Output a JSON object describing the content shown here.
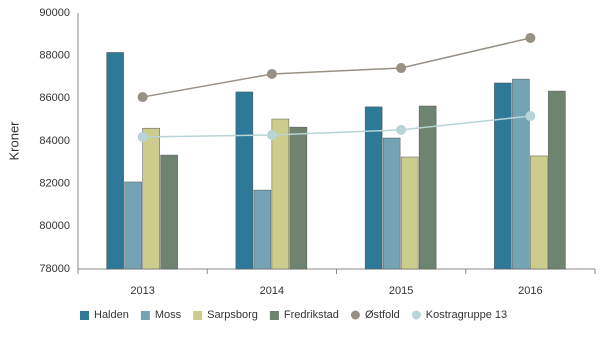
{
  "chart_data": {
    "type": "bar",
    "y_label": "Kroner",
    "categories": [
      "2013",
      "2014",
      "2015",
      "2016"
    ],
    "series": [
      {
        "name": "Halden",
        "type": "bar",
        "color": "#2e7898",
        "values": [
          88150,
          86300,
          85600,
          86720
        ]
      },
      {
        "name": "Moss",
        "type": "bar",
        "color": "#74a3b5",
        "values": [
          82080,
          81700,
          84140,
          86900
        ]
      },
      {
        "name": "Sarpsborg",
        "type": "bar",
        "color": "#cccc8c",
        "values": [
          84600,
          85030,
          83250,
          83300
        ]
      },
      {
        "name": "Fredrikstad",
        "type": "bar",
        "color": "#6e8470",
        "values": [
          83340,
          84650,
          85640,
          86340
        ]
      },
      {
        "name": "Østfold",
        "type": "line",
        "color": "#999085",
        "values": [
          86060,
          87140,
          87420,
          88830
        ]
      },
      {
        "name": "Kostragruppe 13",
        "type": "line",
        "color": "#b8d4d6",
        "values": [
          84190,
          84280,
          84520,
          85170
        ]
      }
    ],
    "ylim": [
      78000,
      90000
    ],
    "yticks": [
      78000,
      80000,
      82000,
      84000,
      86000,
      88000,
      90000
    ],
    "grid": false
  }
}
